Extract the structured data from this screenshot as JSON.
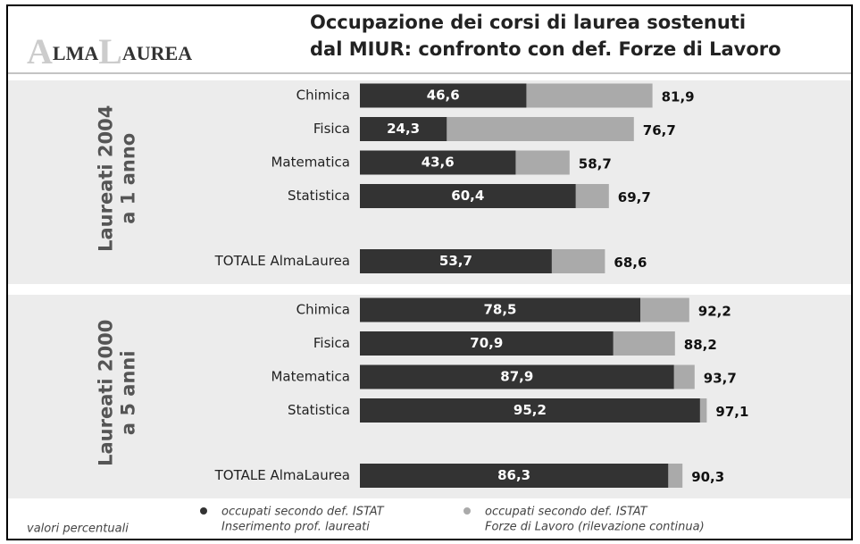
{
  "chart_data": {
    "type": "bar",
    "logo": [
      "A",
      "LMA",
      "L",
      "AUREA"
    ],
    "title": [
      "Occupazione dei corsi di laurea sostenuti",
      "dal MIUR: confronto con def. Forze di Lavoro"
    ],
    "note": "valori percentuali",
    "legend": [
      {
        "name": [
          "occupati secondo def. ISTAT",
          "Inserimento prof. laureati"
        ],
        "color": "#333333"
      },
      {
        "name": [
          "occupati secondo def. ISTAT",
          "Forze di Lavoro (rilevazione continua)"
        ],
        "color": "#aaaaaa"
      }
    ],
    "groups": [
      {
        "label": [
          "Laureati 2004",
          "a 1 anno"
        ],
        "categories": [
          "Chimica",
          "Fisica",
          "Matematica",
          "Statistica",
          "TOTALE AlmaLaurea"
        ],
        "series": [
          {
            "values": [
              46.6,
              24.3,
              43.6,
              60.4,
              53.7
            ],
            "value_labels": [
              "46,6",
              "24,3",
              "43,6",
              "60,4",
              "53,7"
            ]
          },
          {
            "values": [
              81.9,
              76.7,
              58.7,
              69.7,
              68.6
            ],
            "value_labels": [
              "81,9",
              "76,7",
              "58,7",
              "69,7",
              "68,6"
            ]
          }
        ]
      },
      {
        "label": [
          "Laureati 2000",
          "a 5 anni"
        ],
        "categories": [
          "Chimica",
          "Fisica",
          "Matematica",
          "Statistica",
          "TOTALE AlmaLaurea"
        ],
        "series": [
          {
            "values": [
              78.5,
              70.9,
              87.9,
              95.2,
              86.3
            ],
            "value_labels": [
              "78,5",
              "70,9",
              "87,9",
              "95,2",
              "86,3"
            ]
          },
          {
            "values": [
              92.2,
              88.2,
              93.7,
              97.1,
              90.3
            ],
            "value_labels": [
              "92,2",
              "88,2",
              "93,7",
              "97,1",
              "90,3"
            ]
          }
        ]
      }
    ]
  }
}
